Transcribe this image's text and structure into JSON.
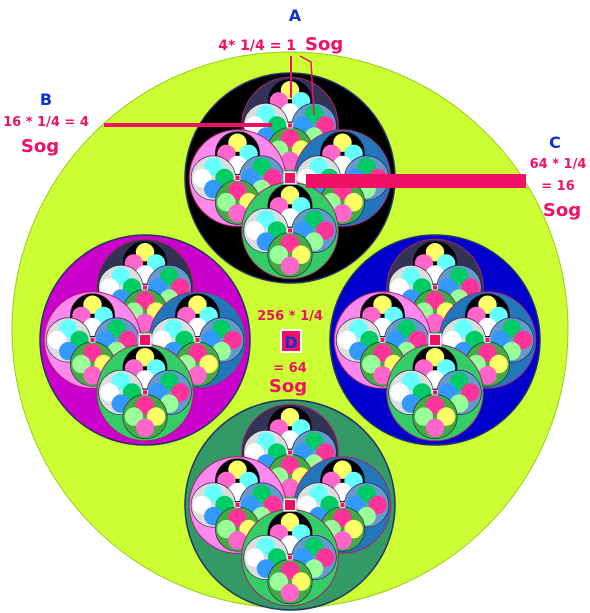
{
  "palette": {
    "outer_disc": "#ccff33",
    "level3_fills": [
      "#000000",
      "#cc00cc",
      "#0000cc",
      "#339966"
    ],
    "level2_fills": [
      "#333355",
      "#ff88ee",
      "#2277bb",
      "#33cc66"
    ],
    "level1_fills": [
      "#000000",
      "#dddddd",
      "#6699cc",
      "#44aa44"
    ],
    "dot_colors": [
      "#ffff66",
      "#ff66cc",
      "#66ffff",
      "#ffffff",
      "#00cc66",
      "#3399ff",
      "#ff3399",
      "#99ff99"
    ],
    "accent": "#ee1166",
    "label_blue": "#1133cc",
    "center_marker_fill": "#ee1166",
    "center_marker_border": "#ffffff"
  },
  "labels": {
    "A": {
      "letter": "A",
      "line1": "4* 1/4 = 1",
      "unit": "Sog"
    },
    "B": {
      "letter": "B",
      "line1": "16 * 1/4 = 4",
      "unit": "Sog"
    },
    "C": {
      "letter": "C",
      "line1": "64 * 1/4",
      "line2": "= 16",
      "unit": "Sog"
    },
    "D": {
      "letter": "D",
      "line1": "256 * 1/4",
      "line2": "= 64",
      "unit": "Sog"
    }
  }
}
